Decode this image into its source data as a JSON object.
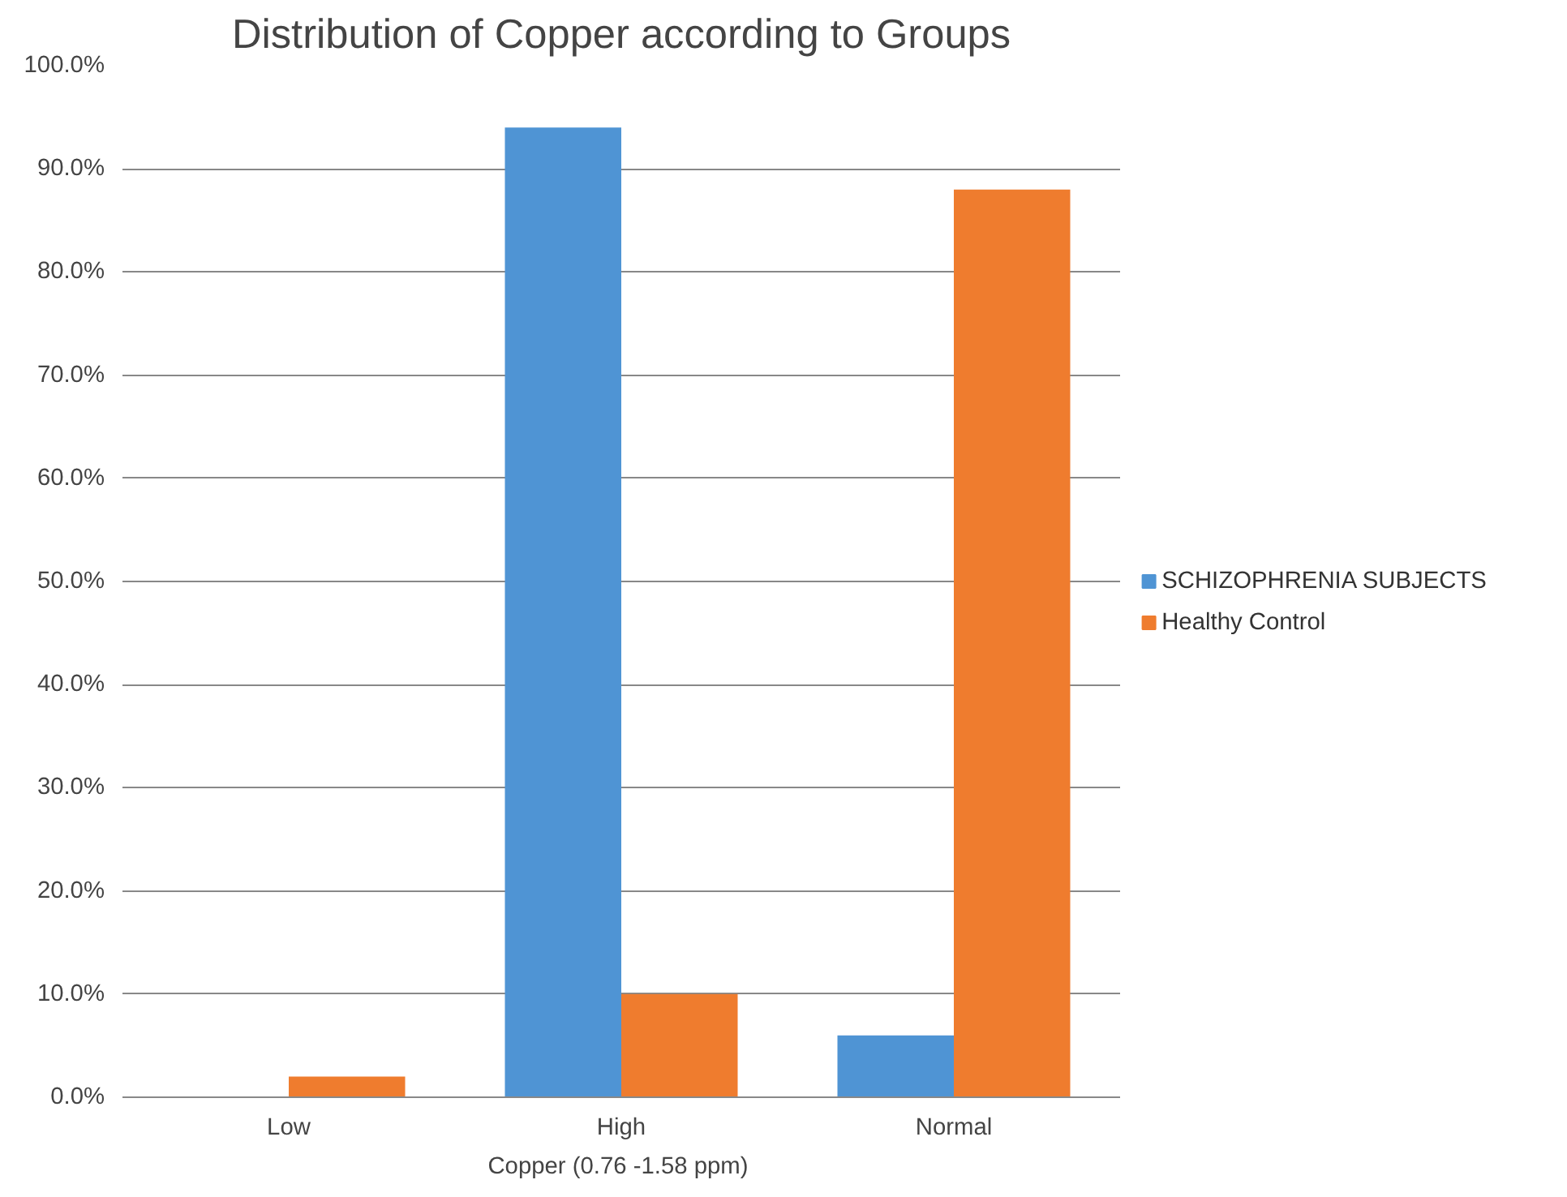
{
  "chart_data": {
    "type": "bar",
    "title": "Distribution of Copper according to Groups",
    "xlabel": "Copper  (0.76 -1.58 ppm)",
    "categories": [
      "Low",
      "High",
      "Normal"
    ],
    "series": [
      {
        "name": "SCHIZOPHRENIA SUBJECTS",
        "color": "#4f94d4",
        "values": [
          0,
          94.0,
          6.0
        ]
      },
      {
        "name": "Healthy Control",
        "color": "#ef7c2e",
        "values": [
          2.0,
          10.0,
          88.0
        ]
      }
    ],
    "ylim": [
      0,
      100
    ],
    "yticks": [
      {
        "value": 0,
        "label": "0.0%"
      },
      {
        "value": 10,
        "label": "10.0%"
      },
      {
        "value": 20,
        "label": "20.0%"
      },
      {
        "value": 30,
        "label": "30.0%"
      },
      {
        "value": 40,
        "label": "40.0%"
      },
      {
        "value": 50,
        "label": "50.0%"
      },
      {
        "value": 60,
        "label": "60.0%"
      },
      {
        "value": 70,
        "label": "70.0%"
      },
      {
        "value": 80,
        "label": "80.0%"
      },
      {
        "value": 90,
        "label": "90.0%"
      },
      {
        "value": 100,
        "label": "100.0%"
      }
    ],
    "grid": "y",
    "legend": "right"
  }
}
